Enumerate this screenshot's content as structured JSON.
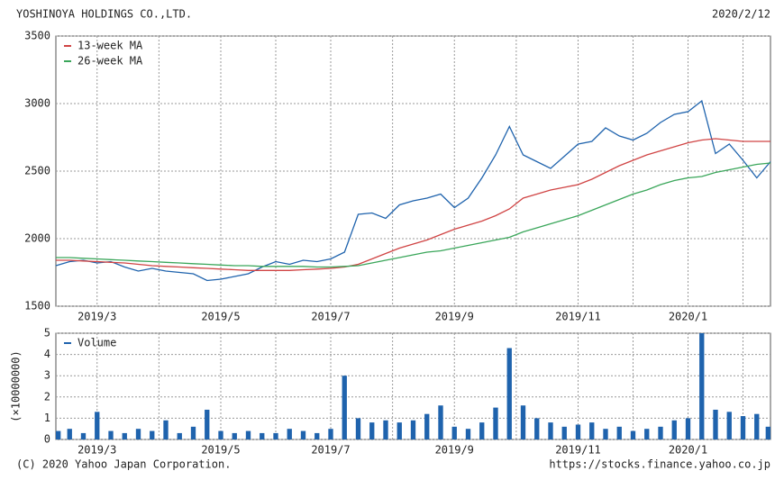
{
  "header": {
    "title": "YOSHINOYA HOLDINGS CO.,LTD.",
    "date": "2020/2/12"
  },
  "footer": {
    "copyright": "(C) 2020 Yahoo Japan Corporation.",
    "url": "https://stocks.finance.yahoo.co.jp"
  },
  "chart_data": [
    {
      "type": "line",
      "categories": [
        null,
        null,
        null,
        "2019/3",
        null,
        null,
        null,
        null,
        null,
        null,
        null,
        null,
        "2019/5",
        null,
        null,
        null,
        null,
        null,
        null,
        null,
        "2019/7",
        null,
        null,
        null,
        null,
        null,
        null,
        null,
        null,
        "2019/9",
        null,
        null,
        null,
        null,
        null,
        null,
        null,
        null,
        "2019/11",
        null,
        null,
        null,
        null,
        null,
        null,
        null,
        "2020/1",
        null,
        null,
        null,
        null,
        null,
        null
      ],
      "ylim": [
        1500,
        3500
      ],
      "yticks": [
        1500,
        2000,
        2500,
        3000,
        3500
      ],
      "grid": true,
      "legend": "upper-left",
      "series": [
        {
          "color": "#1f63ad",
          "values": [
            1800,
            1830,
            1840,
            1820,
            1830,
            1790,
            1760,
            1780,
            1760,
            1750,
            1740,
            1690,
            1700,
            1720,
            1740,
            1790,
            1830,
            1810,
            1840,
            1830,
            1850,
            1900,
            2180,
            2190,
            2150,
            2250,
            2280,
            2300,
            2330,
            2230,
            2300,
            2450,
            2620,
            2830,
            2620,
            2570,
            2520,
            2610,
            2700,
            2720,
            2820,
            2760,
            2730,
            2780,
            2860,
            2920,
            2940,
            3020,
            2630,
            2700,
            2580,
            2450,
            2570
          ]
        },
        {
          "name": "13-week MA",
          "color": "#d04444",
          "values": [
            1840,
            1840,
            1835,
            1830,
            1825,
            1820,
            1810,
            1800,
            1795,
            1790,
            1785,
            1780,
            1775,
            1770,
            1765,
            1765,
            1765,
            1765,
            1770,
            1775,
            1780,
            1790,
            1810,
            1850,
            1890,
            1930,
            1960,
            1990,
            2030,
            2070,
            2100,
            2130,
            2170,
            2220,
            2300,
            2330,
            2360,
            2380,
            2400,
            2440,
            2490,
            2540,
            2580,
            2620,
            2650,
            2680,
            2710,
            2730,
            2740,
            2730,
            2720,
            2720,
            2720
          ]
        },
        {
          "name": "26-week MA",
          "color": "#3aa65a",
          "values": [
            1860,
            1860,
            1855,
            1850,
            1845,
            1840,
            1835,
            1830,
            1825,
            1820,
            1815,
            1810,
            1805,
            1800,
            1800,
            1795,
            1795,
            1795,
            1795,
            1790,
            1790,
            1795,
            1800,
            1820,
            1840,
            1860,
            1880,
            1900,
            1910,
            1930,
            1950,
            1970,
            1990,
            2010,
            2050,
            2080,
            2110,
            2140,
            2170,
            2210,
            2250,
            2290,
            2330,
            2360,
            2400,
            2430,
            2450,
            2460,
            2490,
            2510,
            2530,
            2550,
            2560
          ]
        }
      ]
    },
    {
      "type": "bar",
      "categories": [
        null,
        null,
        null,
        "2019/3",
        null,
        null,
        null,
        null,
        null,
        null,
        null,
        null,
        "2019/5",
        null,
        null,
        null,
        null,
        null,
        null,
        null,
        "2019/7",
        null,
        null,
        null,
        null,
        null,
        null,
        null,
        null,
        "2019/9",
        null,
        null,
        null,
        null,
        null,
        null,
        null,
        null,
        "2019/11",
        null,
        null,
        null,
        null,
        null,
        null,
        null,
        "2020/1",
        null,
        null,
        null,
        null,
        null,
        null
      ],
      "ylabel": "(×10000000)",
      "ylim": [
        0,
        5
      ],
      "yticks": [
        0,
        1,
        2,
        3,
        4,
        5
      ],
      "grid": true,
      "legend": "upper-left",
      "series": [
        {
          "name": "Volume",
          "color": "#1f63ad",
          "values": [
            0.4,
            0.5,
            0.3,
            1.3,
            0.4,
            0.3,
            0.5,
            0.4,
            0.9,
            0.3,
            0.6,
            1.4,
            0.4,
            0.3,
            0.4,
            0.3,
            0.3,
            0.5,
            0.4,
            0.3,
            0.5,
            3.0,
            1.0,
            0.8,
            0.9,
            0.8,
            0.9,
            1.2,
            1.6,
            0.6,
            0.5,
            0.8,
            1.5,
            4.3,
            1.6,
            1.0,
            0.8,
            0.6,
            0.7,
            0.8,
            0.5,
            0.6,
            0.4,
            0.5,
            0.6,
            0.9,
            1.0,
            5.0,
            1.4,
            1.3,
            1.1,
            1.2,
            0.6
          ]
        }
      ]
    }
  ]
}
